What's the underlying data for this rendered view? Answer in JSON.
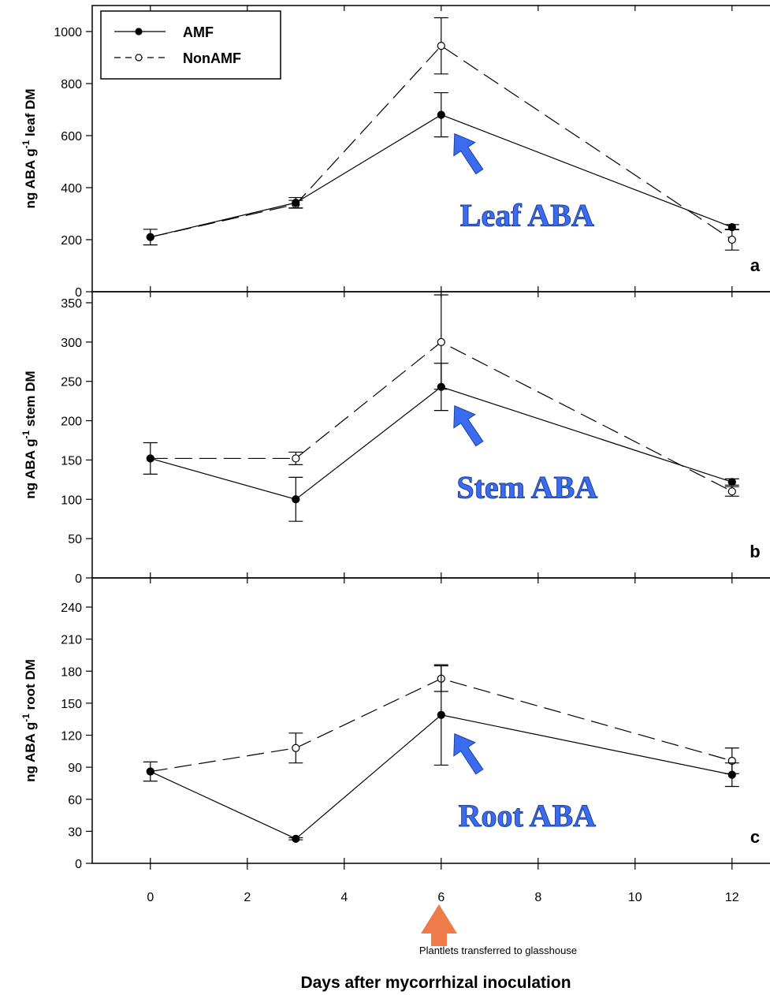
{
  "xlabel": "Days after mycorrhizal inoculation",
  "note": "Plantlets transferred to glasshouse",
  "legend": [
    {
      "name": "AMF",
      "marker": "filled",
      "dash": false
    },
    {
      "name": "NonAMF",
      "marker": "open",
      "dash": true
    }
  ],
  "colors": {
    "callout": "#3b6cf0",
    "note_arrow": "#f07b4a",
    "axis": "#000000"
  },
  "chart_data": [
    {
      "type": "line",
      "panel": "a",
      "ylabel": "ng ABA g-1 leaf DM",
      "ylabel_main": "ng ABA g",
      "ylabel_sup": "-1",
      "ylabel_rest": " leaf DM",
      "callout": "Leaf ABA",
      "xlim": [
        -1.2,
        12.8
      ],
      "ylim": [
        0,
        1000
      ],
      "yticks": [
        0,
        200,
        400,
        600,
        800,
        1000
      ],
      "xticks": [
        0,
        2,
        4,
        6,
        8,
        10,
        12
      ],
      "x": [
        0,
        3,
        6,
        12
      ],
      "series": [
        {
          "name": "AMF",
          "values": [
            210,
            342,
            680,
            248
          ],
          "errors": [
            0,
            20,
            85,
            10
          ]
        },
        {
          "name": "NonAMF",
          "values": [
            210,
            336,
            945,
            200
          ],
          "errors": [
            30,
            15,
            108,
            40
          ]
        }
      ]
    },
    {
      "type": "line",
      "panel": "b",
      "ylabel": "ng ABA g-1 stem DM",
      "ylabel_main": "ng ABA g",
      "ylabel_sup": "-1",
      "ylabel_rest": " stem DM",
      "callout": "Stem ABA",
      "xlim": [
        -1.2,
        12.8
      ],
      "ylim": [
        0,
        350
      ],
      "yticks": [
        0,
        50,
        100,
        150,
        200,
        250,
        300,
        350
      ],
      "xticks": [
        0,
        2,
        4,
        6,
        8,
        10,
        12
      ],
      "x": [
        0,
        3,
        6,
        12
      ],
      "series": [
        {
          "name": "AMF",
          "values": [
            152,
            100,
            243,
            122
          ],
          "errors": [
            20,
            28,
            30,
            4
          ]
        },
        {
          "name": "NonAMF",
          "values": [
            152,
            152,
            300,
            110
          ],
          "errors": [
            0,
            8,
            60,
            6
          ]
        }
      ]
    },
    {
      "type": "line",
      "panel": "c",
      "ylabel": "ng ABA g-1 root DM",
      "ylabel_main": "ng ABA g",
      "ylabel_sup": "-1",
      "ylabel_rest": " root DM",
      "callout": "Root ABA",
      "xlim": [
        -1.2,
        12.8
      ],
      "ylim": [
        0,
        255
      ],
      "yticks": [
        0,
        30,
        60,
        90,
        120,
        150,
        180,
        210,
        240
      ],
      "xticks": [
        0,
        2,
        4,
        6,
        8,
        10,
        12
      ],
      "x": [
        0,
        3,
        6,
        12
      ],
      "series": [
        {
          "name": "AMF",
          "values": [
            86,
            23,
            139,
            83
          ],
          "errors": [
            9,
            1,
            47,
            11
          ]
        },
        {
          "name": "NonAMF",
          "values": [
            86,
            108,
            173,
            96
          ],
          "errors": [
            0,
            14,
            12,
            12
          ]
        }
      ]
    }
  ]
}
